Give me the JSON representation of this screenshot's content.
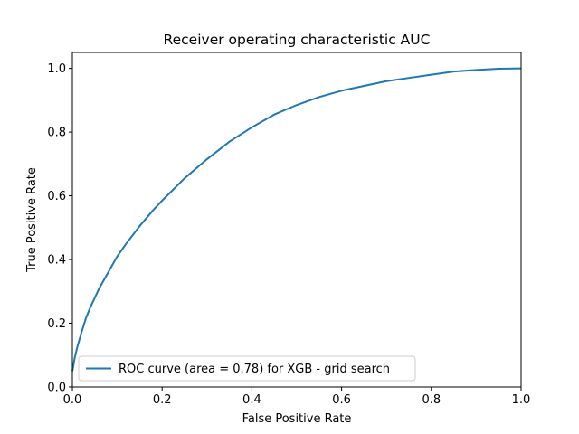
{
  "chart_data": {
    "type": "line",
    "title": "Receiver operating characteristic AUC",
    "xlabel": "False Positive Rate",
    "ylabel": "True Positive Rate",
    "xlim": [
      0.0,
      1.0
    ],
    "ylim": [
      0.0,
      1.05
    ],
    "x_ticks": [
      "0.0",
      "0.2",
      "0.4",
      "0.6",
      "0.8",
      "1.0"
    ],
    "y_ticks": [
      "0.0",
      "0.2",
      "0.4",
      "0.6",
      "0.8",
      "1.0"
    ],
    "grid": false,
    "legend_position": "lower-left",
    "series": [
      {
        "name": "ROC curve (area = 0.78) for XGB - grid search",
        "color": "#1f77b4",
        "x": [
          0.0,
          0.002,
          0.005,
          0.01,
          0.02,
          0.03,
          0.04,
          0.05,
          0.06,
          0.08,
          0.1,
          0.12,
          0.15,
          0.18,
          0.2,
          0.25,
          0.3,
          0.35,
          0.4,
          0.45,
          0.5,
          0.55,
          0.6,
          0.65,
          0.7,
          0.75,
          0.8,
          0.85,
          0.9,
          0.95,
          1.0
        ],
        "y": [
          0.05,
          0.065,
          0.09,
          0.12,
          0.17,
          0.215,
          0.25,
          0.28,
          0.31,
          0.36,
          0.41,
          0.45,
          0.505,
          0.555,
          0.585,
          0.655,
          0.715,
          0.77,
          0.815,
          0.855,
          0.885,
          0.91,
          0.93,
          0.945,
          0.96,
          0.97,
          0.98,
          0.99,
          0.995,
          0.999,
          1.0
        ]
      }
    ]
  }
}
